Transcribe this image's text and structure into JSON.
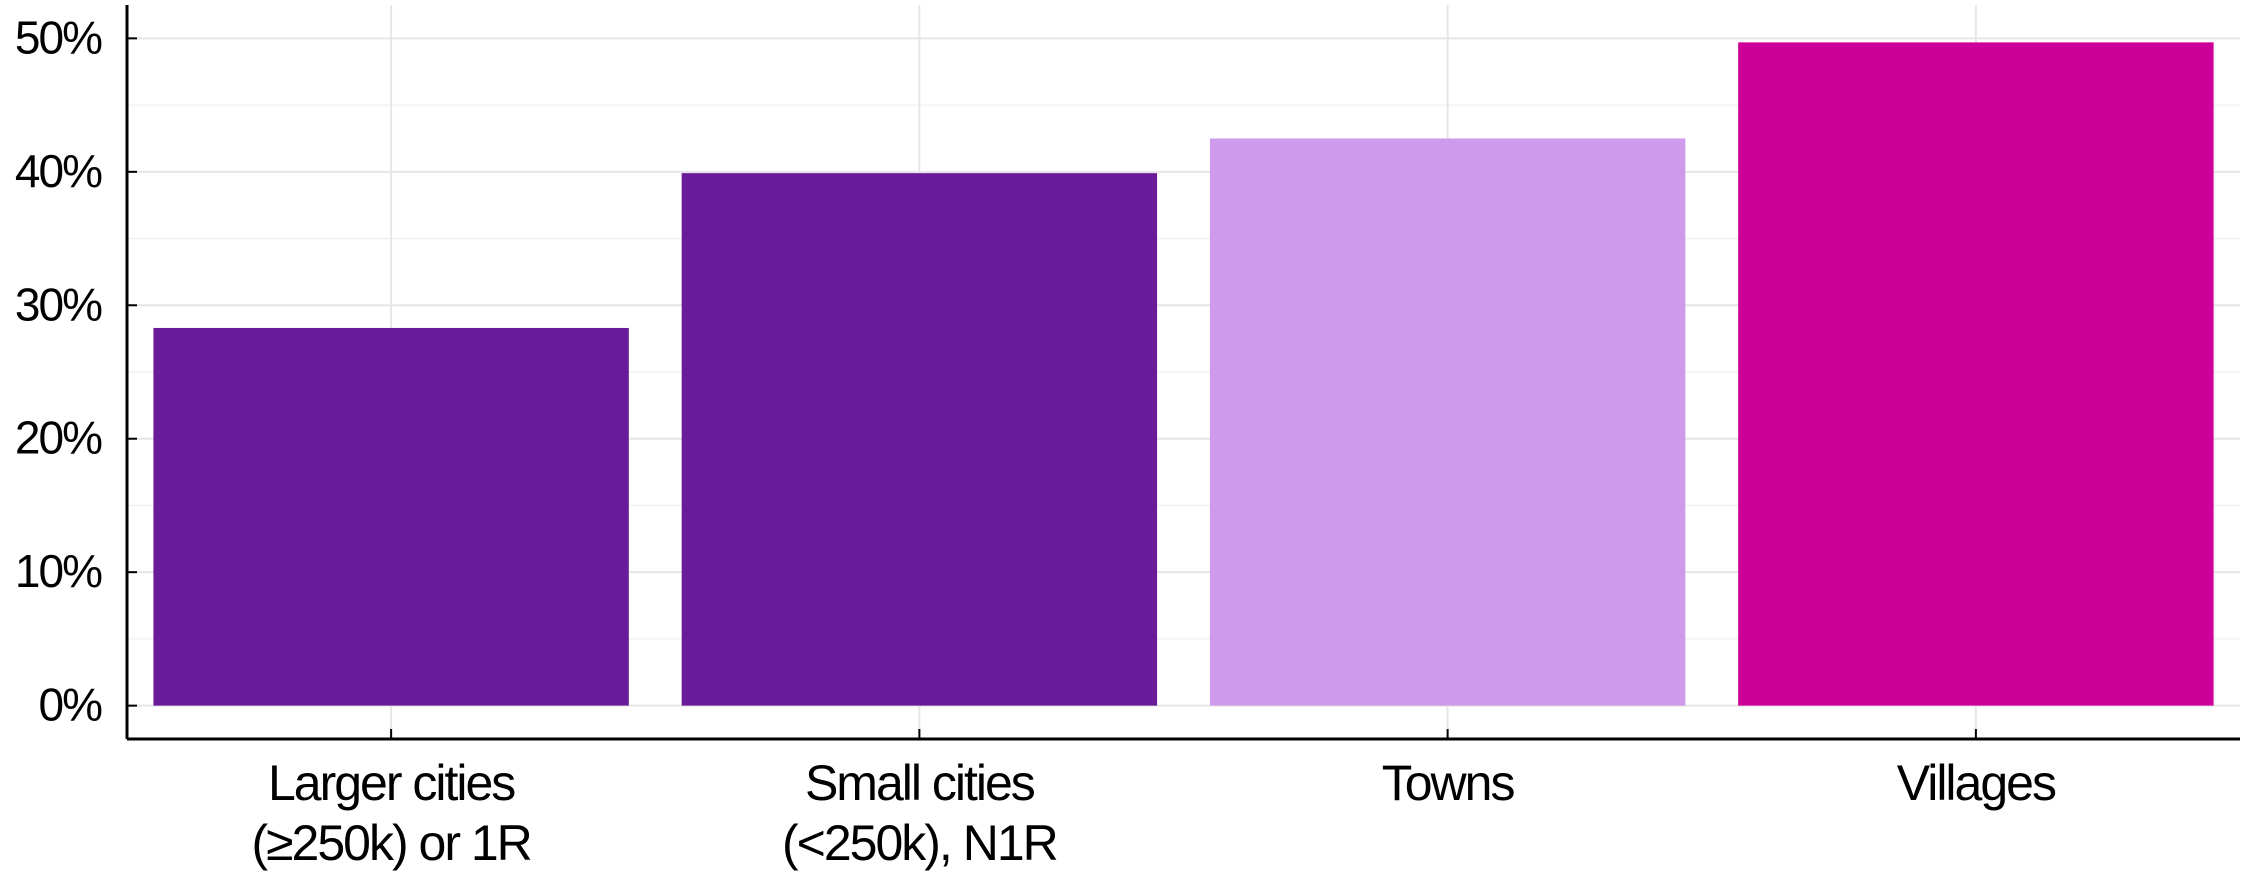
{
  "chart_data": {
    "type": "bar",
    "title": "",
    "xlabel": "",
    "ylabel": "",
    "categories": [
      [
        "Larger cities",
        "(≥250k) or 1R"
      ],
      [
        "Small cities",
        "(<250k), N1R"
      ],
      [
        "Towns"
      ],
      [
        "Villages"
      ]
    ],
    "values": [
      28.3,
      39.9,
      42.5,
      49.7
    ],
    "bar_colors": [
      "#6a1b9a",
      "#6a1b9a",
      "#ce9bec",
      "#cc0099"
    ],
    "ylim": [
      -2.5,
      52.5
    ],
    "yticks": [
      0,
      10,
      20,
      30,
      40,
      50
    ],
    "ytick_labels": [
      "0%",
      "10%",
      "20%",
      "30%",
      "40%",
      "50%"
    ],
    "grid": true,
    "legend": "none"
  },
  "colors": {
    "grid_major": "#e6e6e6",
    "grid_minor": "#f2f2f2",
    "axis": "#000000"
  }
}
